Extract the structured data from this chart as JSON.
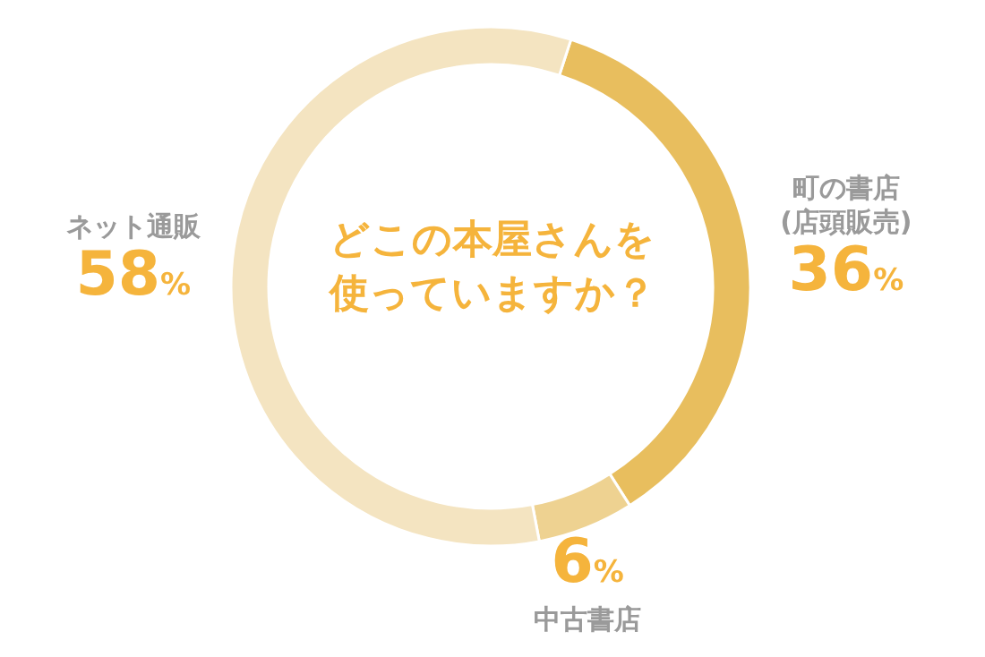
{
  "chart_data": {
    "type": "donut",
    "title": "どこの本屋さんを使っていますか？",
    "categories": [
      "町の書店(店頭販売)",
      "中古書店",
      "ネット通販"
    ],
    "values": [
      36,
      6,
      58
    ],
    "colors": [
      "#e8be5e",
      "#eed291",
      "#f4e4c1"
    ],
    "value_labels": [
      "36%",
      "6%",
      "58%"
    ]
  }
}
